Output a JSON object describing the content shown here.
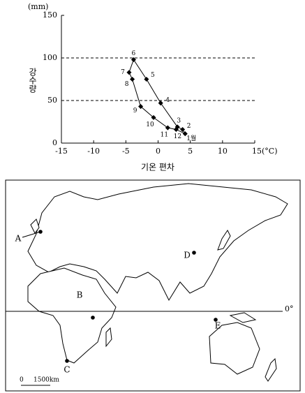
{
  "chart_data": {
    "type": "line",
    "x_label": "기온 편차",
    "y_label": "강수량",
    "y_unit": "(mm)",
    "x": [
      4.2,
      3.8,
      3.0,
      0.4,
      -1.8,
      -3.8,
      -4.5,
      -4.0,
      -2.7,
      -0.7,
      1.5,
      2.8
    ],
    "series": [
      {
        "color": "#000000",
        "values": [
          11,
          16,
          19,
          47,
          75,
          98,
          83,
          75,
          43,
          30,
          18,
          16
        ],
        "point_labels": [
          "1월",
          "2",
          "3",
          "4",
          "5",
          "6",
          "7",
          "8",
          "9",
          "10",
          "11",
          "12"
        ]
      }
    ],
    "xlim": [
      -15,
      15
    ],
    "xticks": [
      -15,
      -10,
      -5,
      0,
      5,
      10,
      {
        "value": 15,
        "label": "15(°C)"
      }
    ],
    "ylim": [
      0,
      150
    ],
    "yticks": [
      0,
      50,
      100,
      150
    ],
    "grid": "dashed"
  },
  "map": {
    "markers": [
      {
        "label": "A"
      },
      {
        "label": "B"
      },
      {
        "label": "C"
      },
      {
        "label": "D"
      },
      {
        "label": "E"
      }
    ],
    "equator_label": "0°",
    "scale": {
      "start": "0",
      "end": "1500km"
    }
  }
}
